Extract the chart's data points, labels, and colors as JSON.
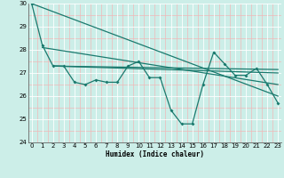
{
  "x": [
    0,
    1,
    2,
    3,
    4,
    5,
    6,
    7,
    8,
    9,
    10,
    11,
    12,
    13,
    14,
    15,
    16,
    17,
    18,
    19,
    20,
    21,
    22,
    23
  ],
  "main_line": [
    30.0,
    28.2,
    27.3,
    27.3,
    26.6,
    26.5,
    26.7,
    26.6,
    26.6,
    27.3,
    27.5,
    26.8,
    26.8,
    25.4,
    24.8,
    24.8,
    26.5,
    27.9,
    27.4,
    26.9,
    26.9,
    27.2,
    26.5,
    25.7
  ],
  "trend1_x": [
    0,
    23
  ],
  "trend1_y": [
    30.0,
    26.0
  ],
  "trend2_x": [
    1,
    23
  ],
  "trend2_y": [
    28.1,
    26.5
  ],
  "trend3_x": [
    2,
    23
  ],
  "trend3_y": [
    27.3,
    27.15
  ],
  "trend4_x": [
    2,
    23
  ],
  "trend4_y": [
    27.3,
    27.0
  ],
  "ylim": [
    24,
    30
  ],
  "xlim": [
    -0.3,
    23.3
  ],
  "yticks": [
    24,
    25,
    26,
    27,
    28,
    29,
    30
  ],
  "xticks": [
    0,
    1,
    2,
    3,
    4,
    5,
    6,
    7,
    8,
    9,
    10,
    11,
    12,
    13,
    14,
    15,
    16,
    17,
    18,
    19,
    20,
    21,
    22,
    23
  ],
  "xlabel": "Humidex (Indice chaleur)",
  "line_color": "#1a7a6e",
  "bg_color": "#cceee8",
  "grid_major_color": "#ffffff",
  "grid_minor_color": "#f0b8b8"
}
